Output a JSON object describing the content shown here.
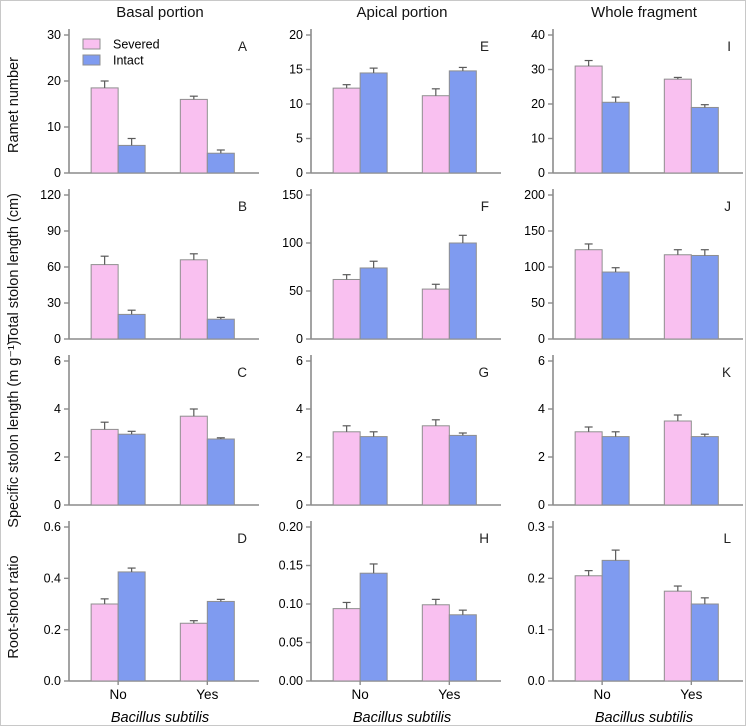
{
  "chart_data": {
    "type": "bar",
    "layout": "grid of 12 bar panels (3 columns x 4 rows) with SE error bars",
    "column_titles": [
      "Basal portion",
      "Apical portion",
      "Whole fragment"
    ],
    "row_ylabels": [
      "Ramet number",
      "Total stolon length (cm)",
      "Specific stolon length (m g⁻¹)",
      "Root-shoot ratio"
    ],
    "x_categories": [
      "No",
      "Yes"
    ],
    "xlabel": "Bacillus subtilis",
    "legend": {
      "position": "top-left of panel A",
      "entries": [
        {
          "name": "Severed",
          "color": "#f9c0f0"
        },
        {
          "name": "Intact",
          "color": "#7f9bf0"
        }
      ]
    },
    "panels": [
      {
        "letter": "A",
        "column": "Basal portion",
        "measure": "Ramet number",
        "ylim": [
          0,
          30
        ],
        "yticks": [
          "0",
          "10",
          "20",
          "30"
        ],
        "show_legend": true,
        "series": [
          {
            "name": "Severed",
            "values": [
              18.5,
              16.0
            ],
            "errors": [
              1.5,
              0.7
            ]
          },
          {
            "name": "Intact",
            "values": [
              6.0,
              4.3
            ],
            "errors": [
              1.5,
              0.7
            ]
          }
        ]
      },
      {
        "letter": "E",
        "column": "Apical portion",
        "measure": "Ramet number",
        "ylim": [
          0,
          20
        ],
        "yticks": [
          "0",
          "5",
          "10",
          "15",
          "20"
        ],
        "series": [
          {
            "name": "Severed",
            "values": [
              12.3,
              11.2
            ],
            "errors": [
              0.5,
              1.0
            ]
          },
          {
            "name": "Intact",
            "values": [
              14.5,
              14.8
            ],
            "errors": [
              0.7,
              0.5
            ]
          }
        ]
      },
      {
        "letter": "I",
        "column": "Whole fragment",
        "measure": "Ramet number",
        "ylim": [
          0,
          40
        ],
        "yticks": [
          "0",
          "10",
          "20",
          "30",
          "40"
        ],
        "series": [
          {
            "name": "Severed",
            "values": [
              31.0,
              27.2
            ],
            "errors": [
              1.6,
              0.5
            ]
          },
          {
            "name": "Intact",
            "values": [
              20.5,
              19.0
            ],
            "errors": [
              1.5,
              0.8
            ]
          }
        ]
      },
      {
        "letter": "B",
        "column": "Basal portion",
        "measure": "Total stolon length (cm)",
        "ylim": [
          0,
          120
        ],
        "yticks": [
          "0",
          "30",
          "60",
          "90",
          "120"
        ],
        "series": [
          {
            "name": "Severed",
            "values": [
              62,
              66
            ],
            "errors": [
              7,
              5
            ]
          },
          {
            "name": "Intact",
            "values": [
              20.5,
              16.5
            ],
            "errors": [
              3.5,
              1.5
            ]
          }
        ]
      },
      {
        "letter": "F",
        "column": "Apical portion",
        "measure": "Total stolon length (cm)",
        "ylim": [
          0,
          150
        ],
        "yticks": [
          "0",
          "50",
          "100",
          "150"
        ],
        "series": [
          {
            "name": "Severed",
            "values": [
              62,
              52
            ],
            "errors": [
              5,
              5
            ]
          },
          {
            "name": "Intact",
            "values": [
              74,
              100
            ],
            "errors": [
              7,
              8
            ]
          }
        ]
      },
      {
        "letter": "J",
        "column": "Whole fragment",
        "measure": "Total stolon length (cm)",
        "ylim": [
          0,
          200
        ],
        "yticks": [
          "0",
          "50",
          "100",
          "150",
          "200"
        ],
        "series": [
          {
            "name": "Severed",
            "values": [
              124,
              117
            ],
            "errors": [
              8,
              7
            ]
          },
          {
            "name": "Intact",
            "values": [
              93,
              116
            ],
            "errors": [
              6,
              8
            ]
          }
        ]
      },
      {
        "letter": "C",
        "column": "Basal portion",
        "measure": "Specific stolon length (m g⁻¹)",
        "ylim": [
          0,
          6
        ],
        "yticks": [
          "0",
          "2",
          "4",
          "6"
        ],
        "series": [
          {
            "name": "Severed",
            "values": [
              3.15,
              3.7
            ],
            "errors": [
              0.3,
              0.3
            ]
          },
          {
            "name": "Intact",
            "values": [
              2.95,
              2.75
            ],
            "errors": [
              0.12,
              0.05
            ]
          }
        ]
      },
      {
        "letter": "G",
        "column": "Apical portion",
        "measure": "Specific stolon length (m g⁻¹)",
        "ylim": [
          0,
          6
        ],
        "yticks": [
          "0",
          "2",
          "4",
          "6"
        ],
        "series": [
          {
            "name": "Severed",
            "values": [
              3.05,
              3.3
            ],
            "errors": [
              0.25,
              0.25
            ]
          },
          {
            "name": "Intact",
            "values": [
              2.85,
              2.9
            ],
            "errors": [
              0.2,
              0.1
            ]
          }
        ]
      },
      {
        "letter": "K",
        "column": "Whole fragment",
        "measure": "Specific stolon length (m g⁻¹)",
        "ylim": [
          0,
          6
        ],
        "yticks": [
          "0",
          "2",
          "4",
          "6"
        ],
        "series": [
          {
            "name": "Severed",
            "values": [
              3.05,
              3.5
            ],
            "errors": [
              0.2,
              0.25
            ]
          },
          {
            "name": "Intact",
            "values": [
              2.85,
              2.85
            ],
            "errors": [
              0.2,
              0.1
            ]
          }
        ]
      },
      {
        "letter": "D",
        "column": "Basal portion",
        "measure": "Root-shoot ratio",
        "ylim": [
          0,
          0.6
        ],
        "yticks": [
          "0.0",
          "0.2",
          "0.4",
          "0.6"
        ],
        "series": [
          {
            "name": "Severed",
            "values": [
              0.3,
              0.225
            ],
            "errors": [
              0.02,
              0.01
            ]
          },
          {
            "name": "Intact",
            "values": [
              0.425,
              0.31
            ],
            "errors": [
              0.015,
              0.008
            ]
          }
        ]
      },
      {
        "letter": "H",
        "column": "Apical portion",
        "measure": "Root-shoot ratio",
        "ylim": [
          0,
          0.2
        ],
        "yticks": [
          "0.00",
          "0.05",
          "0.10",
          "0.15",
          "0.20"
        ],
        "series": [
          {
            "name": "Severed",
            "values": [
              0.094,
              0.099
            ],
            "errors": [
              0.008,
              0.007
            ]
          },
          {
            "name": "Intact",
            "values": [
              0.14,
              0.086
            ],
            "errors": [
              0.012,
              0.006
            ]
          }
        ]
      },
      {
        "letter": "L",
        "column": "Whole fragment",
        "measure": "Root-shoot ratio",
        "ylim": [
          0,
          0.3
        ],
        "yticks": [
          "0.0",
          "0.1",
          "0.2",
          "0.3"
        ],
        "series": [
          {
            "name": "Severed",
            "values": [
              0.205,
              0.175
            ],
            "errors": [
              0.01,
              0.01
            ]
          },
          {
            "name": "Intact",
            "values": [
              0.235,
              0.15
            ],
            "errors": [
              0.02,
              0.012
            ]
          }
        ]
      }
    ]
  },
  "colors": {
    "severed_fill": "#f9c0f0",
    "intact_fill": "#7f9bf0",
    "bar_border": "#8f8f8f",
    "axis": "#8c8c8c",
    "error_bar": "#5a5a5a",
    "text": "#000000",
    "frame": "#c8c8c8"
  }
}
